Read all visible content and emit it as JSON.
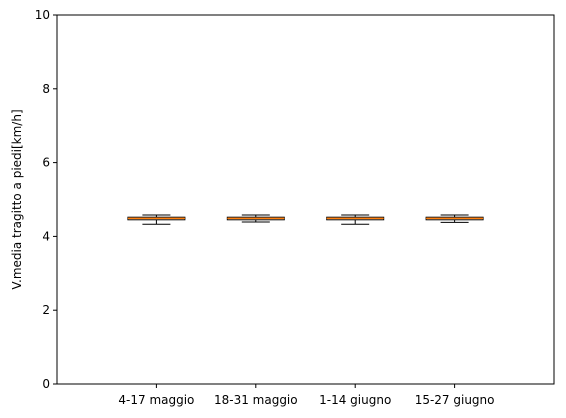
{
  "chart_data": {
    "type": "box",
    "title": "",
    "xlabel": "",
    "ylabel": "V.media tragitto a piedi[km/h]",
    "ylim": [
      0,
      10
    ],
    "yticks": [
      0,
      2,
      4,
      6,
      8,
      10
    ],
    "grid": false,
    "categories": [
      "4-17 maggio",
      "18-31 maggio",
      "1-14 giugno",
      "15-27 giugno"
    ],
    "boxes": [
      {
        "whisker_low": 4.33,
        "q1": 4.45,
        "median": 4.49,
        "q3": 4.52,
        "whisker_high": 4.58
      },
      {
        "whisker_low": 4.39,
        "q1": 4.45,
        "median": 4.49,
        "q3": 4.52,
        "whisker_high": 4.58
      },
      {
        "whisker_low": 4.33,
        "q1": 4.45,
        "median": 4.49,
        "q3": 4.52,
        "whisker_high": 4.58
      },
      {
        "whisker_low": 4.38,
        "q1": 4.45,
        "median": 4.49,
        "q3": 4.52,
        "whisker_high": 4.58
      }
    ],
    "colors": {
      "box": "#000000",
      "median": "#ff7f0e",
      "axes": "#000000"
    }
  }
}
